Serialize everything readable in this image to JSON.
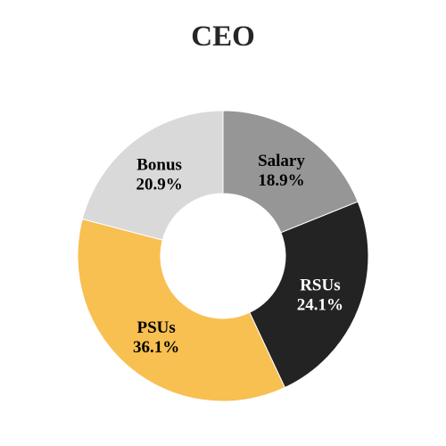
{
  "chart_data": {
    "type": "pie",
    "title": "CEO",
    "donut": true,
    "start": "12 o'clock, clockwise",
    "slices": [
      {
        "label": "Salary",
        "value": 18.9,
        "value_label": "18.9%",
        "color": "#969696",
        "label_color": "#000000"
      },
      {
        "label": "RSUs",
        "value": 24.1,
        "value_label": "24.1%",
        "color": "#232323",
        "label_color": "#ffffff"
      },
      {
        "label": "PSUs",
        "value": 36.1,
        "value_label": "36.1%",
        "color": "#f8bf51",
        "label_color": "#000000"
      },
      {
        "label": "Bonus",
        "value": 20.9,
        "value_label": "20.9%",
        "color": "#d9d9d9",
        "label_color": "#000000"
      }
    ]
  }
}
